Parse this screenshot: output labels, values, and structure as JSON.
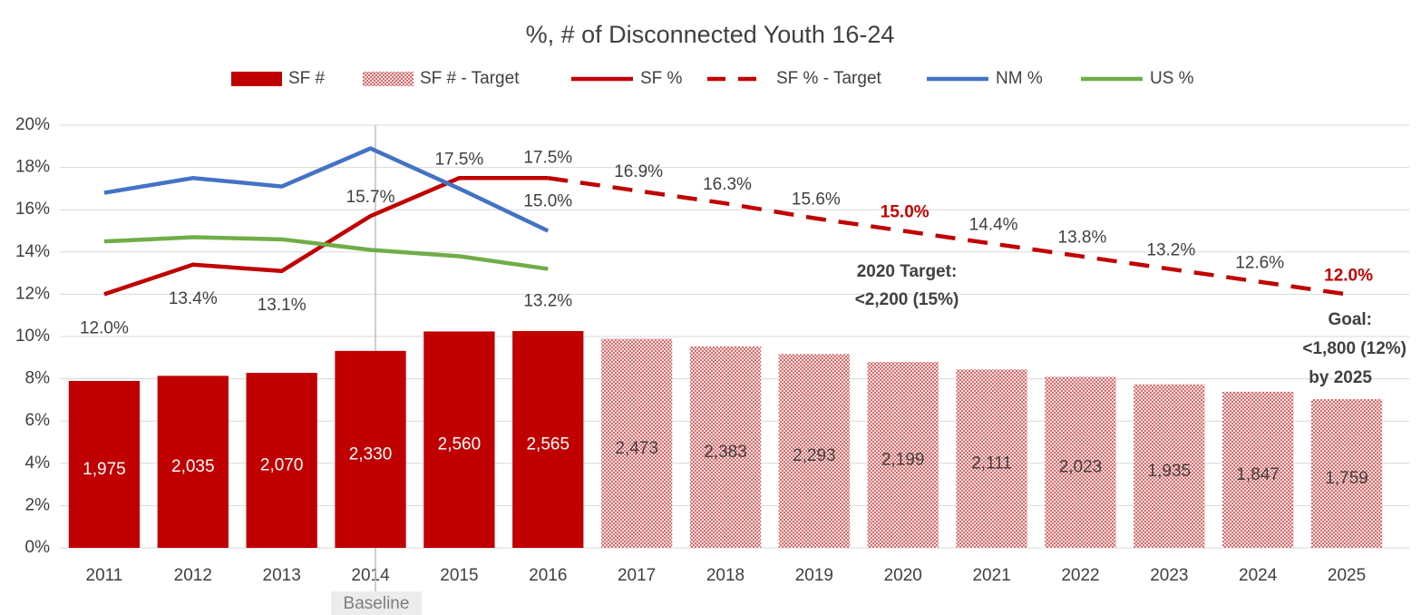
{
  "chart_data": {
    "type": "bar-line",
    "title": "%, # of Disconnected Youth  16-24",
    "categories": [
      "2011",
      "2012",
      "2013",
      "2014",
      "2015",
      "2016",
      "2017",
      "2018",
      "2019",
      "2020",
      "2021",
      "2022",
      "2023",
      "2024",
      "2025"
    ],
    "ylim": [
      0,
      20
    ],
    "yticks": [
      {
        "value": 0,
        "label": "0%"
      },
      {
        "value": 2,
        "label": "2%"
      },
      {
        "value": 4,
        "label": "4%"
      },
      {
        "value": 6,
        "label": "6%"
      },
      {
        "value": 8,
        "label": "8%"
      },
      {
        "value": 10,
        "label": "10%"
      },
      {
        "value": 12,
        "label": "12%"
      },
      {
        "value": 14,
        "label": "14%"
      },
      {
        "value": 16,
        "label": "16%"
      },
      {
        "value": 18,
        "label": "18%"
      },
      {
        "value": 20,
        "label": "20%"
      }
    ],
    "y2lim": [
      0,
      5000
    ],
    "grid": true,
    "legend": "top",
    "series": [
      {
        "name": "SF #",
        "kind": "bar",
        "axis": "y2",
        "color": "#c00000",
        "values": [
          1975,
          2035,
          2070,
          2330,
          2560,
          2565,
          null,
          null,
          null,
          null,
          null,
          null,
          null,
          null,
          null
        ],
        "value_labels": [
          "1,975",
          "2,035",
          "2,070",
          "2,330",
          "2,560",
          "2,565",
          null,
          null,
          null,
          null,
          null,
          null,
          null,
          null,
          null
        ]
      },
      {
        "name": "SF # - Target",
        "kind": "hatched-bar",
        "axis": "y2",
        "color": "#c00000",
        "values": [
          null,
          null,
          null,
          null,
          null,
          null,
          2473,
          2383,
          2293,
          2199,
          2111,
          2023,
          1935,
          1847,
          1759
        ],
        "value_labels": [
          null,
          null,
          null,
          null,
          null,
          null,
          "2,473",
          "2,383",
          "2,293",
          "2,199",
          "2,111",
          "2,023",
          "1,935",
          "1,847",
          "1,759"
        ]
      },
      {
        "name": "SF %",
        "kind": "line",
        "color": "#c00000",
        "values": [
          12.0,
          13.4,
          13.1,
          15.7,
          17.5,
          17.5,
          null,
          null,
          null,
          null,
          null,
          null,
          null,
          null,
          null
        ],
        "value_labels": [
          "12.0%",
          "13.4%",
          "13.1%",
          "15.7%",
          "17.5%",
          "17.5%",
          null,
          null,
          null,
          null,
          null,
          null,
          null,
          null,
          null
        ]
      },
      {
        "name": "SF % - Target",
        "kind": "dashed-line",
        "color": "#c00000",
        "values": [
          null,
          null,
          null,
          null,
          null,
          17.5,
          16.9,
          16.3,
          15.6,
          15.0,
          14.4,
          13.8,
          13.2,
          12.6,
          12.0
        ],
        "value_labels": [
          null,
          null,
          null,
          null,
          null,
          null,
          "16.9%",
          "16.3%",
          "15.6%",
          "15.0%",
          "14.4%",
          "13.8%",
          "13.2%",
          "12.6%",
          "12.0%"
        ]
      },
      {
        "name": "NM %",
        "kind": "line",
        "color": "#4472c4",
        "values": [
          16.8,
          17.5,
          17.1,
          18.9,
          17.0,
          15.0,
          null,
          null,
          null,
          null,
          null,
          null,
          null,
          null,
          null
        ],
        "value_labels": [
          null,
          null,
          null,
          null,
          null,
          "15.0%",
          null,
          null,
          null,
          null,
          null,
          null,
          null,
          null,
          null
        ]
      },
      {
        "name": "US %",
        "kind": "line",
        "color": "#70ad47",
        "values": [
          14.5,
          14.7,
          14.6,
          14.1,
          13.8,
          13.2,
          null,
          null,
          null,
          null,
          null,
          null,
          null,
          null,
          null
        ],
        "value_labels": [
          null,
          null,
          null,
          null,
          null,
          "13.2%",
          null,
          null,
          null,
          null,
          null,
          null,
          null,
          null,
          null
        ]
      }
    ],
    "annotations": {
      "target_2020": [
        "2020 Target:",
        "<2,200 (15%)"
      ],
      "goal": [
        "Goal:",
        "<1,800 (12%)",
        "by 2025"
      ],
      "baseline": "Baseline"
    }
  }
}
